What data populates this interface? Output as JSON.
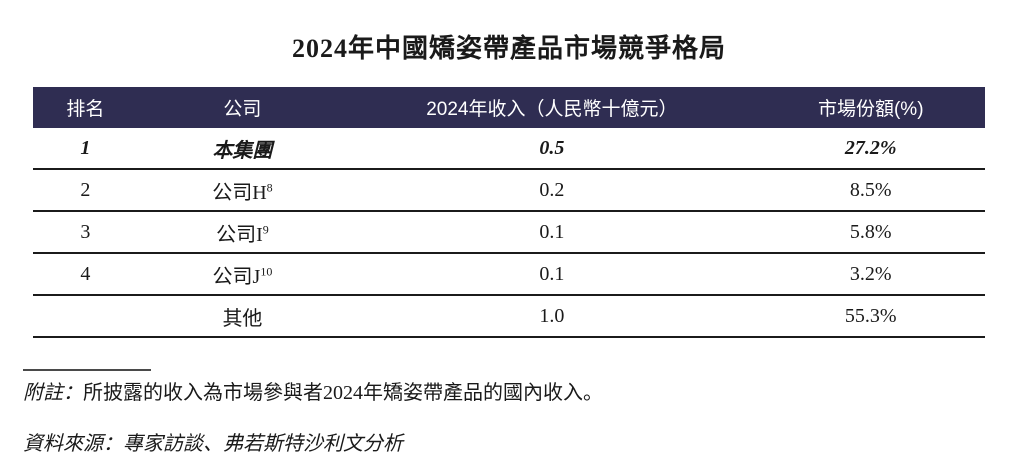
{
  "title": "2024年中國矯姿帶產品市場競爭格局",
  "table": {
    "headers": [
      "排名",
      "公司",
      "2024年收入（人民幣十億元）",
      "市場份額(%)"
    ],
    "rows": [
      {
        "rank": "1",
        "company": "本集團",
        "company_sup": "",
        "revenue": "0.5",
        "share": "27.2%"
      },
      {
        "rank": "2",
        "company": "公司H",
        "company_sup": "8",
        "revenue": "0.2",
        "share": "8.5%"
      },
      {
        "rank": "3",
        "company": "公司I",
        "company_sup": "9",
        "revenue": "0.1",
        "share": "5.8%"
      },
      {
        "rank": "4",
        "company": "公司J",
        "company_sup": "10",
        "revenue": "0.1",
        "share": "3.2%"
      },
      {
        "rank": "",
        "company": "其他",
        "company_sup": "",
        "revenue": "1.0",
        "share": "55.3%"
      }
    ]
  },
  "notes": {
    "note_label": "附註：",
    "note_text": "所披露的收入為市場參與者2024年矯姿帶產品的國內收入。",
    "source_text": "資料來源：專家訪談、弗若斯特沙利文分析"
  },
  "colors": {
    "header_bg": "#2f2d52",
    "row_rule": "#1b1b1b",
    "footnote_rule": "#4a4a4a",
    "text": "#1a1a1a"
  }
}
